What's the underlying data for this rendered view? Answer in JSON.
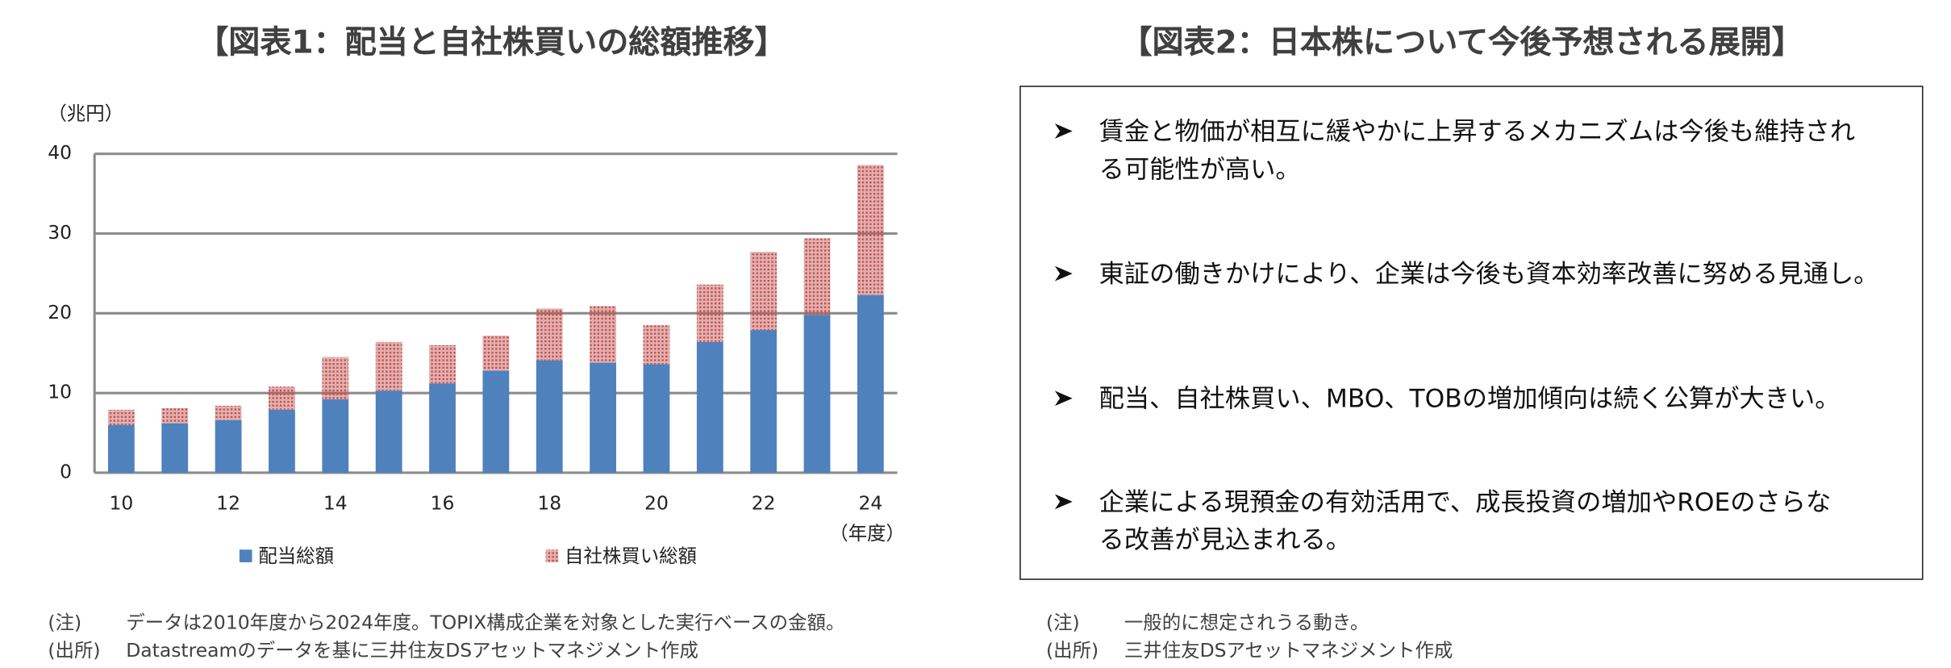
{
  "chart_data": {
    "type": "stacked_bar",
    "title": "【図表1：配当と自社株買いの総額推移】",
    "y_label": "（兆円）",
    "x_label": "（年度）",
    "categories": [
      "10",
      null,
      "12",
      null,
      "14",
      null,
      "16",
      null,
      "18",
      null,
      "20",
      null,
      "22",
      null,
      "24"
    ],
    "series": [
      {
        "name": "配当総額",
        "color": "#4f81bd",
        "values": [
          6.0,
          6.2,
          6.6,
          7.9,
          9.2,
          10.3,
          11.2,
          12.8,
          14.1,
          13.8,
          13.6,
          16.4,
          17.9,
          19.8,
          22.3
        ]
      },
      {
        "name": "自社株買い総額",
        "color": "#c0504d",
        "values": [
          1.9,
          1.9,
          1.8,
          2.9,
          5.3,
          6.1,
          4.8,
          4.4,
          6.5,
          7.1,
          4.9,
          7.2,
          9.8,
          9.6,
          16.3
        ]
      }
    ],
    "ylim": [
      0,
      40
    ],
    "yticks": [
      0,
      10,
      20,
      30,
      40
    ],
    "grid": true
  },
  "figure1_notes": [
    {
      "label": "(注)",
      "text": "データは2010年度から2024年度。TOPIX構成企業を対象とした実行ベースの金額。"
    },
    {
      "label": "(出所)",
      "text": "Datastreamのデータを基に三井住友DSアセットマネジメント作成"
    }
  ],
  "figure2": {
    "title": "【図表2：日本株について今後予想される展開】",
    "items": [
      {
        "lines": [
          "賃金と物価が相互に緩やかに上昇するメカニズムは今後も維持され",
          "る可能性が高い。"
        ]
      },
      {
        "lines": [
          "東証の働きかけにより、企業は今後も資本効率改善に努める見通し。"
        ]
      },
      {
        "lines": [
          "配当、自社株買い、MBO、TOBの増加傾向は続く公算が大きい。"
        ]
      },
      {
        "lines": [
          "企業による現預金の有効活用で、成長投資の増加やROEのさらな",
          "る改善が見込まれる。"
        ]
      }
    ],
    "notes": [
      {
        "label": "(注)",
        "text": "一般的に想定されうる動き。"
      },
      {
        "label": "(出所)",
        "text": "三井住友DSアセットマネジメント作成"
      }
    ]
  }
}
